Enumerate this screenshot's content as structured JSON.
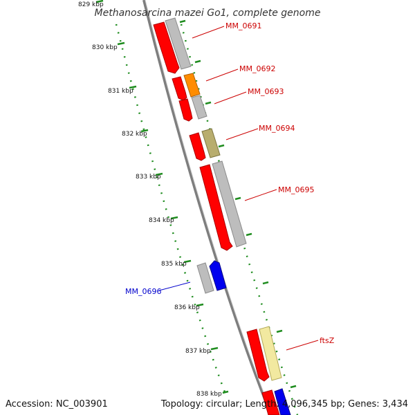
{
  "title": "Methanosarcina mazei Go1, complete genome",
  "ticks": [
    {
      "label": "829 kbp"
    },
    {
      "label": "830 kbp"
    },
    {
      "label": "831 kbp"
    },
    {
      "label": "832 kbp"
    },
    {
      "label": "833 kbp"
    },
    {
      "label": "834 kbp"
    },
    {
      "label": "835 kbp"
    },
    {
      "label": "836 kbp"
    },
    {
      "label": "837 kbp"
    },
    {
      "label": "838 kbp"
    }
  ],
  "genes": [
    {
      "label": "MM_0691",
      "color": "#cc0000"
    },
    {
      "label": "MM_0692",
      "color": "#cc0000"
    },
    {
      "label": "MM_0693",
      "color": "#cc0000"
    },
    {
      "label": "MM_0694",
      "color": "#cc0000"
    },
    {
      "label": "MM_0695",
      "color": "#cc0000"
    },
    {
      "label": "MM_0696",
      "color": "#0000cc"
    },
    {
      "label": "ftsZ",
      "color": "#cc0000"
    }
  ],
  "footer": {
    "accession": "Accession: NC_003901",
    "summary": "Topology: circular; Length: 4,096,345 bp; Genes: 3,434"
  },
  "colors": {
    "cds": "#ff0000",
    "cds_reverse": "#0000ff",
    "feature_gray": "#b8b8b8",
    "feature_orange": "#ff8c00",
    "feature_olive": "#b8ad6e",
    "feature_pale": "#f2e9a0",
    "backbone": "#8a8a8a",
    "tick": "#1e8c1e"
  }
}
